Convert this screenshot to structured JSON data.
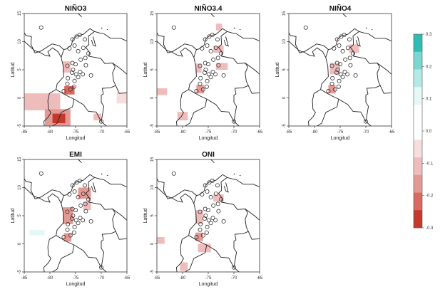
{
  "axes": {
    "xlabel": "Longitud",
    "ylabel": "Latitud",
    "xticks": [
      "-85",
      "-80",
      "-75",
      "-70",
      "-65"
    ],
    "yticks": [
      "15",
      "10",
      "5",
      "0",
      "-5"
    ],
    "xlim": [
      -85,
      -65
    ],
    "ylim": [
      -5,
      15
    ]
  },
  "panels": [
    {
      "title": "NIÑO3",
      "patches": [
        {
          "lon": -85,
          "lat": -2.2,
          "w": 7,
          "h": 3,
          "v": -0.1
        },
        {
          "lon": -81,
          "lat": -5,
          "w": 5,
          "h": 3,
          "v": -0.15
        },
        {
          "lon": -79.5,
          "lat": -4.5,
          "w": 2.5,
          "h": 1.7,
          "v": -0.25
        },
        {
          "lon": -84.5,
          "lat": -1,
          "w": 2,
          "h": 1.5,
          "v": -0.12
        },
        {
          "lon": -67,
          "lat": -1,
          "w": 2,
          "h": 2,
          "v": -0.08
        },
        {
          "lon": -71.5,
          "lat": -4,
          "w": 1.5,
          "h": 1.2,
          "v": -0.1
        },
        {
          "lon": -82.5,
          "lat": 11.2,
          "w": 2.5,
          "h": 1.5,
          "v": 0.08
        },
        {
          "lon": -77.2,
          "lat": 0.6,
          "w": 2,
          "h": 1.5,
          "v": -0.22
        },
        {
          "lon": -77.5,
          "lat": 4.5,
          "w": 1.5,
          "h": 2,
          "v": -0.12
        }
      ]
    },
    {
      "title": "NIÑO3.4",
      "patches": [
        {
          "lon": -74,
          "lat": 8,
          "w": 2,
          "h": 1.3,
          "v": -0.12
        },
        {
          "lon": -73.5,
          "lat": 5,
          "w": 2.3,
          "h": 1.2,
          "v": -0.12
        },
        {
          "lon": -82,
          "lat": 3,
          "w": 3,
          "h": 0.8,
          "v": 0.07
        },
        {
          "lon": -85,
          "lat": 0.5,
          "w": 2,
          "h": 1.2,
          "v": -0.1
        },
        {
          "lon": -81,
          "lat": -4,
          "w": 2,
          "h": 1.5,
          "v": -0.1
        },
        {
          "lon": -73.5,
          "lat": 12,
          "w": 1.2,
          "h": 1.2,
          "v": -0.1
        },
        {
          "lon": -77.3,
          "lat": 0.8,
          "w": 1.5,
          "h": 1.5,
          "v": -0.15
        },
        {
          "lon": -77.5,
          "lat": 4.5,
          "w": 1.2,
          "h": 1.6,
          "v": -0.12
        }
      ]
    },
    {
      "title": "NIÑO4",
      "patches": [
        {
          "lon": -73.3,
          "lat": 8,
          "w": 2,
          "h": 1.5,
          "v": -0.12
        },
        {
          "lon": -80.5,
          "lat": 3,
          "w": 3,
          "h": 0.8,
          "v": 0.07
        },
        {
          "lon": -72,
          "lat": -4.5,
          "w": 1.5,
          "h": 1,
          "v": 0.07
        },
        {
          "lon": -77.3,
          "lat": 0.8,
          "w": 1.4,
          "h": 1.5,
          "v": -0.15
        },
        {
          "lon": -77,
          "lat": 4.2,
          "w": 2,
          "h": 2,
          "v": -0.12
        }
      ]
    },
    {
      "title": "EMI",
      "patches": [
        {
          "lon": -74.5,
          "lat": 8,
          "w": 2.5,
          "h": 2,
          "v": -0.15
        },
        {
          "lon": -73.5,
          "lat": 6,
          "w": 1.5,
          "h": 1.5,
          "v": -0.12
        },
        {
          "lon": -84,
          "lat": 1.5,
          "w": 3,
          "h": 1,
          "v": 0.09
        },
        {
          "lon": -72,
          "lat": -4.8,
          "w": 1.5,
          "h": 1.2,
          "v": 0.08
        },
        {
          "lon": -77.3,
          "lat": 0.4,
          "w": 1.5,
          "h": 1.5,
          "v": -0.15
        },
        {
          "lon": -77.5,
          "lat": 3.5,
          "w": 2,
          "h": 3,
          "v": -0.18
        }
      ]
    },
    {
      "title": "ONI",
      "patches": [
        {
          "lon": -74,
          "lat": 7.5,
          "w": 2,
          "h": 1.3,
          "v": -0.12
        },
        {
          "lon": -82,
          "lat": 2,
          "w": 2.5,
          "h": 0.8,
          "v": 0.07
        },
        {
          "lon": -85,
          "lat": 0,
          "w": 1.5,
          "h": 1.2,
          "v": -0.1
        },
        {
          "lon": -77,
          "lat": -1.5,
          "w": 2.5,
          "h": 1.5,
          "v": -0.12
        },
        {
          "lon": -80.5,
          "lat": -4.8,
          "w": 1.5,
          "h": 1.5,
          "v": -0.12
        },
        {
          "lon": -77.5,
          "lat": 0.5,
          "w": 1.5,
          "h": 1.5,
          "v": -0.15
        },
        {
          "lon": -77.5,
          "lat": 3.5,
          "w": 1.5,
          "h": 2.5,
          "v": -0.12
        }
      ]
    }
  ],
  "colorbar": {
    "min": -0.3,
    "max": 0.3,
    "ticks": [
      "0.3",
      "0.2",
      "0.1",
      "0.0",
      "-0.1",
      "-0.2",
      "-0.3"
    ],
    "colors": [
      "#2fbcb3",
      "#79d6d0",
      "#b4eae6",
      "#e6f8f6",
      "#ffffff",
      "#ffffff",
      "#f6dede",
      "#efbcbc",
      "#e49a94",
      "#d86a60",
      "#c5392c"
    ]
  },
  "stations": [
    {
      "lon": -81.7,
      "lat": 12.5
    },
    {
      "lon": -75.6,
      "lat": 10.4
    },
    {
      "lon": -74.8,
      "lat": 10.9
    },
    {
      "lon": -74.2,
      "lat": 11.2
    },
    {
      "lon": -75.2,
      "lat": 9.3
    },
    {
      "lon": -74.5,
      "lat": 8.3
    },
    {
      "lon": -73.2,
      "lat": 10.4
    },
    {
      "lon": -76.2,
      "lat": 8.8
    },
    {
      "lon": -73.5,
      "lat": 8.9
    },
    {
      "lon": -72.5,
      "lat": 7.9
    },
    {
      "lon": -75.6,
      "lat": 6.2
    },
    {
      "lon": -76.6,
      "lat": 5.7
    },
    {
      "lon": -74.0,
      "lat": 6.8
    },
    {
      "lon": -75.0,
      "lat": 6.0
    },
    {
      "lon": -73.1,
      "lat": 7.1
    },
    {
      "lon": -75.5,
      "lat": 5.0
    },
    {
      "lon": -74.1,
      "lat": 4.6
    },
    {
      "lon": -73.6,
      "lat": 4.2
    },
    {
      "lon": -75.7,
      "lat": 4.5
    },
    {
      "lon": -76.5,
      "lat": 3.5
    },
    {
      "lon": -75.2,
      "lat": 3.0
    },
    {
      "lon": -74.5,
      "lat": 3.7
    },
    {
      "lon": -76.6,
      "lat": 2.5
    },
    {
      "lon": -75.3,
      "lat": 2.0
    },
    {
      "lon": -77.3,
      "lat": 1.2
    },
    {
      "lon": -76.0,
      "lat": 1.5
    },
    {
      "lon": -70.0,
      "lat": -4.2
    },
    {
      "lon": -72.0,
      "lat": 4.0
    },
    {
      "lon": -73.0,
      "lat": 5.8
    },
    {
      "lon": -74.9,
      "lat": 4.2
    }
  ]
}
